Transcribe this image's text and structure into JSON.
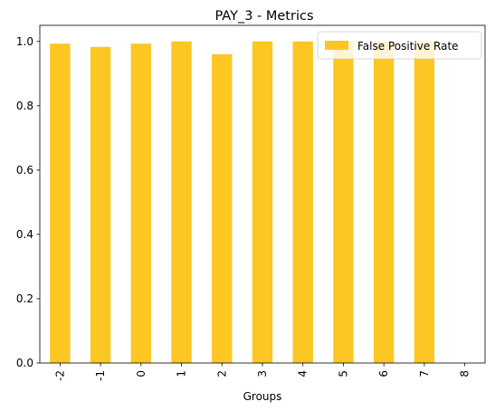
{
  "chart_data": {
    "type": "bar",
    "title": "PAY_3 - Metrics",
    "xlabel": "Groups",
    "ylabel": "",
    "categories": [
      "-2",
      "-1",
      "0",
      "1",
      "2",
      "3",
      "4",
      "5",
      "6",
      "7",
      "8"
    ],
    "series": [
      {
        "name": "False Positive Rate",
        "color": "#fcc623",
        "values": [
          0.993,
          0.983,
          0.993,
          1.0,
          0.96,
          1.0,
          1.0,
          1.0,
          1.0,
          1.0,
          0
        ]
      }
    ],
    "ylim": [
      0,
      1.05
    ],
    "yticks": [
      "0.0",
      "0.2",
      "0.4",
      "0.6",
      "0.8",
      "1.0"
    ],
    "grid": false,
    "legend_position": "upper-right"
  }
}
